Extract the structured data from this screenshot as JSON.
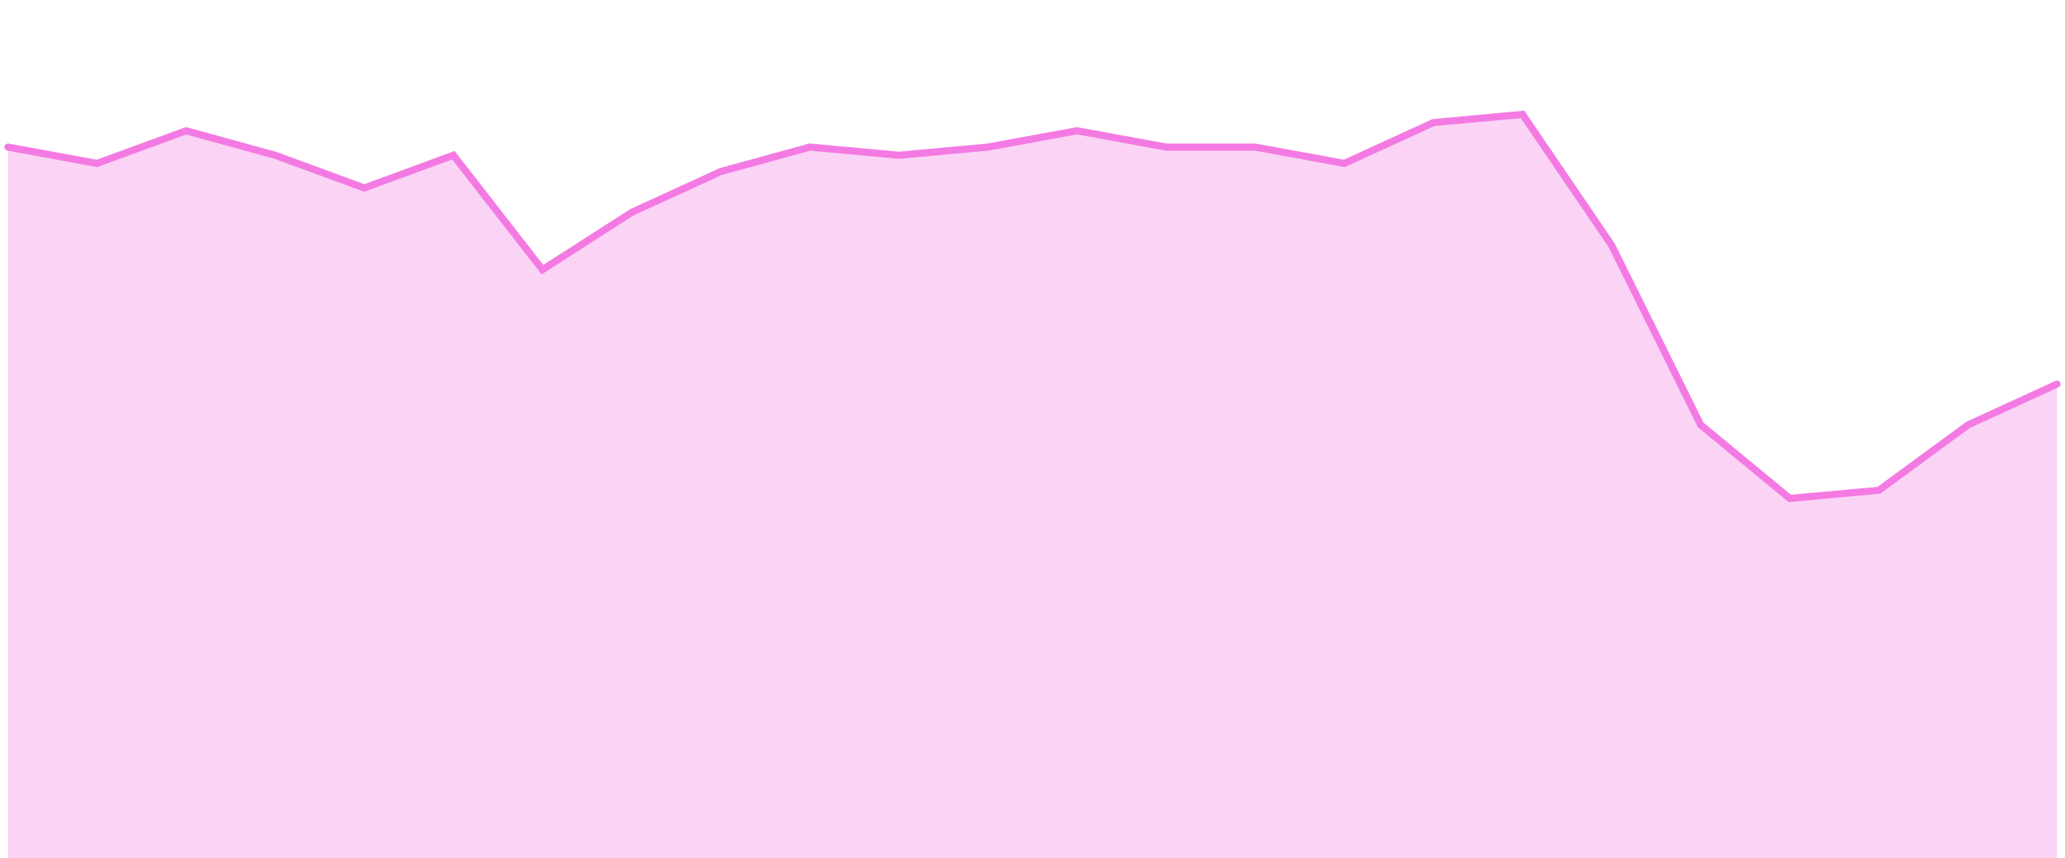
{
  "chart_data": {
    "type": "area",
    "title": "",
    "xlabel": "",
    "ylabel": "",
    "grid": false,
    "legend": "none",
    "x": [
      1,
      2,
      3,
      4,
      5,
      6,
      7,
      8,
      9,
      10,
      11,
      12,
      13,
      14,
      15,
      16,
      17,
      18,
      19,
      20,
      21,
      22,
      23,
      24
    ],
    "series": [
      {
        "name": "",
        "values": [
          87,
          85,
          89,
          86,
          82,
          86,
          72,
          79,
          84,
          87,
          86,
          87,
          89,
          87,
          87,
          85,
          90,
          91,
          75,
          53,
          44,
          45,
          53,
          58
        ]
      }
    ],
    "ylim": [
      0,
      105
    ],
    "colors": {
      "line": "#f47ae3",
      "fill": "#fad3f5",
      "background": "#ffffff"
    }
  }
}
